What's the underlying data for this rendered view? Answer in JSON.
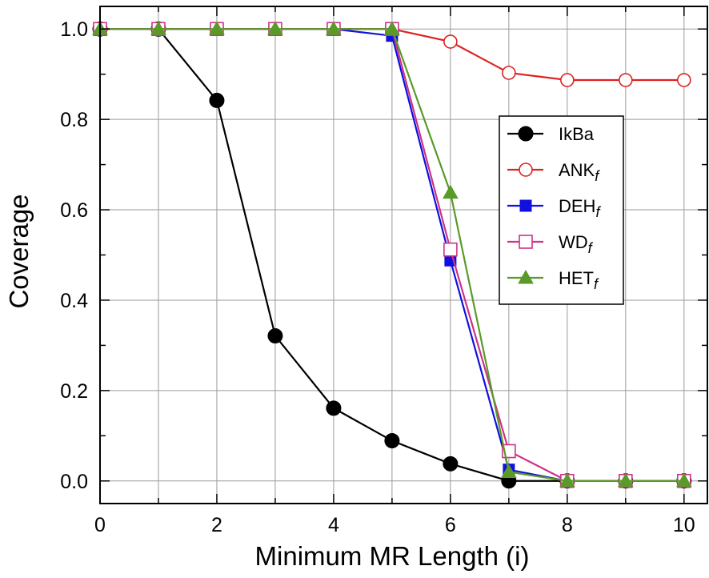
{
  "chart_data": {
    "type": "line",
    "title": "",
    "xlabel": "Minimum MR Length (i)",
    "ylabel": "Coverage",
    "xlim": [
      0,
      10.4
    ],
    "ylim": [
      -0.05,
      1.05
    ],
    "x_ticks": [
      0,
      2,
      4,
      6,
      8,
      10
    ],
    "y_ticks": [
      0.0,
      0.2,
      0.4,
      0.6,
      0.8,
      1.0
    ],
    "x_tick_labels": [
      "0",
      "2",
      "4",
      "6",
      "8",
      "10"
    ],
    "y_tick_labels": [
      "0.0",
      "0.2",
      "0.4",
      "0.6",
      "0.8",
      "1.0"
    ],
    "grid": true,
    "legend_position": "right",
    "series": [
      {
        "name": "IkBa",
        "name_sub": "",
        "color": "#000000",
        "marker": "circle-filled",
        "x": [
          0,
          1,
          2,
          3,
          4,
          5,
          6,
          7,
          8,
          9,
          10
        ],
        "y": [
          1.0,
          1.0,
          0.842,
          0.321,
          0.161,
          0.089,
          0.038,
          0.0,
          0.0,
          0.0,
          0.0
        ]
      },
      {
        "name": "ANK",
        "name_sub": "f",
        "color": "#dd2222",
        "marker": "circle-open",
        "x": [
          0,
          1,
          2,
          3,
          4,
          5,
          6,
          7,
          8,
          9,
          10
        ],
        "y": [
          1.0,
          1.0,
          1.0,
          1.0,
          1.0,
          1.0,
          0.972,
          0.903,
          0.887,
          0.887,
          0.887
        ]
      },
      {
        "name": "DEH",
        "name_sub": "f",
        "color": "#1010e0",
        "marker": "square-filled",
        "x": [
          0,
          1,
          2,
          3,
          4,
          5,
          6,
          7,
          8,
          9,
          10
        ],
        "y": [
          1.0,
          1.0,
          1.0,
          1.0,
          1.0,
          0.985,
          0.488,
          0.025,
          0.0,
          0.0,
          0.0
        ]
      },
      {
        "name": "WD",
        "name_sub": "f",
        "color": "#cc3388",
        "marker": "square-open",
        "x": [
          0,
          1,
          2,
          3,
          4,
          5,
          6,
          7,
          8,
          9,
          10
        ],
        "y": [
          1.0,
          1.0,
          1.0,
          1.0,
          1.0,
          1.0,
          0.512,
          0.066,
          0.0,
          0.0,
          0.0
        ]
      },
      {
        "name": "HET",
        "name_sub": "f",
        "color": "#5a9a28",
        "marker": "triangle-filled",
        "x": [
          0,
          1,
          2,
          3,
          4,
          5,
          6,
          7,
          8,
          9,
          10
        ],
        "y": [
          1.0,
          1.0,
          1.0,
          1.0,
          1.0,
          1.0,
          0.638,
          0.02,
          0.0,
          0.0,
          0.0
        ]
      }
    ]
  }
}
